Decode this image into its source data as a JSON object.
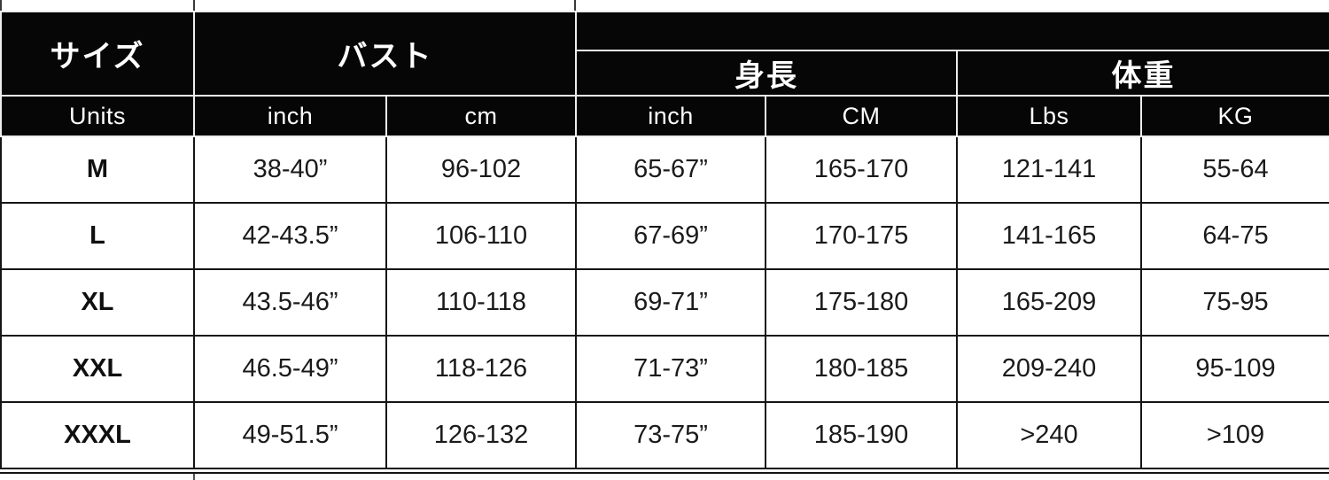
{
  "size_chart": {
    "column_groups": {
      "size": {
        "label": "サイズ"
      },
      "bust": {
        "label": "バスト"
      },
      "height": {
        "label": "身長"
      },
      "weight": {
        "label": "体重"
      }
    },
    "unit_headers": [
      "Units",
      "inch",
      "cm",
      "inch",
      "CM",
      "Lbs",
      "KG"
    ],
    "rows": [
      [
        "M",
        "38-40”",
        "96-102",
        "65-67”",
        "165-170",
        "121-141",
        "55-64"
      ],
      [
        "L",
        "42-43.5”",
        "106-110",
        "67-69”",
        "170-175",
        "141-165",
        "64-75"
      ],
      [
        "XL",
        "43.5-46”",
        "110-118",
        "69-71”",
        "175-180",
        "165-209",
        "75-95"
      ],
      [
        "XXL",
        "46.5-49”",
        "118-126",
        "71-73”",
        "180-185",
        "209-240",
        "95-109"
      ],
      [
        "XXXL",
        "49-51.5”",
        "126-132",
        "73-75”",
        "185-190",
        ">240",
        ">109"
      ]
    ]
  },
  "colors": {
    "header_bg": "#060606",
    "header_text": "#ffffff",
    "header_divider": "#ededed",
    "body_bg": "#ffffff",
    "body_text": "#1a1a1a",
    "grid_line": "#151515"
  }
}
